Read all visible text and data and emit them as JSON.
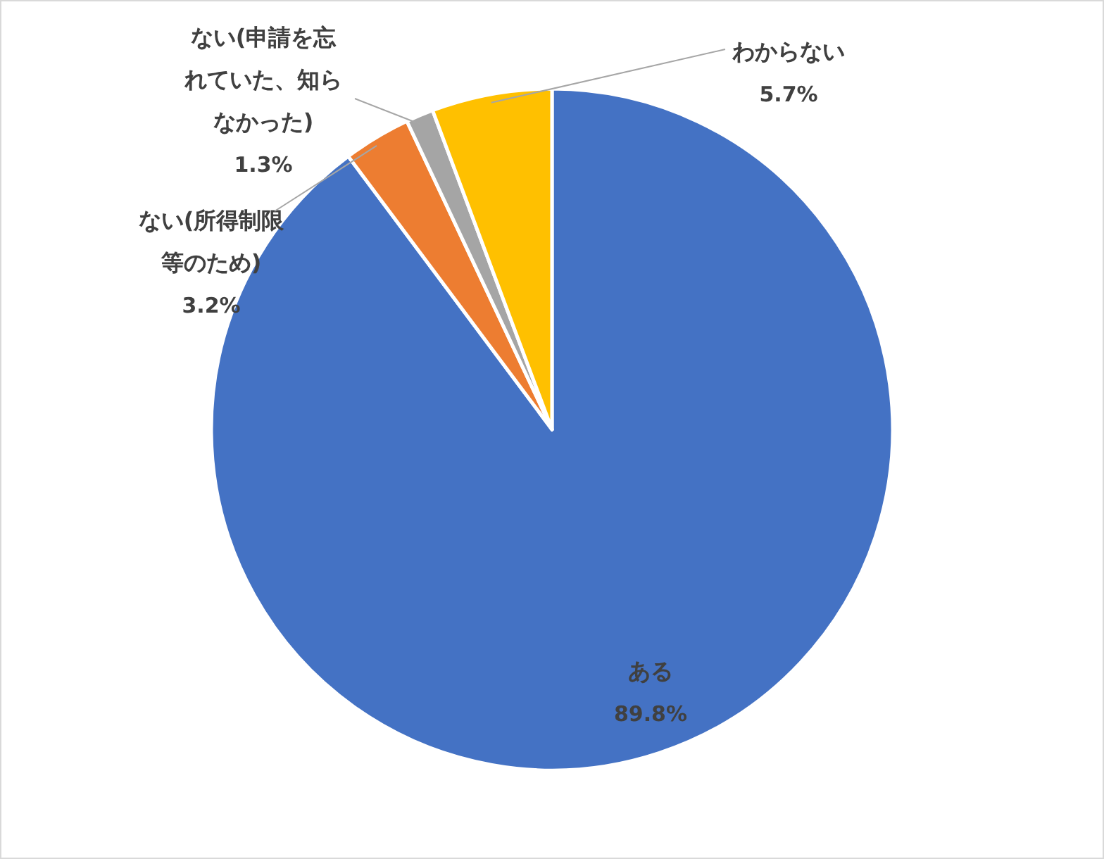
{
  "chart_data": {
    "type": "pie",
    "categories": [
      "ある",
      "ない(所得制限等のため)",
      "ない(申請を忘れていた、知らなかった)",
      "わからない"
    ],
    "values": [
      89.8,
      3.2,
      1.3,
      5.7
    ],
    "colors": [
      "#4472c4",
      "#ed7d31",
      "#a5a5a5",
      "#ffc000"
    ],
    "value_labels": [
      "89.8%",
      "3.2%",
      "1.3%",
      "5.7%"
    ]
  }
}
